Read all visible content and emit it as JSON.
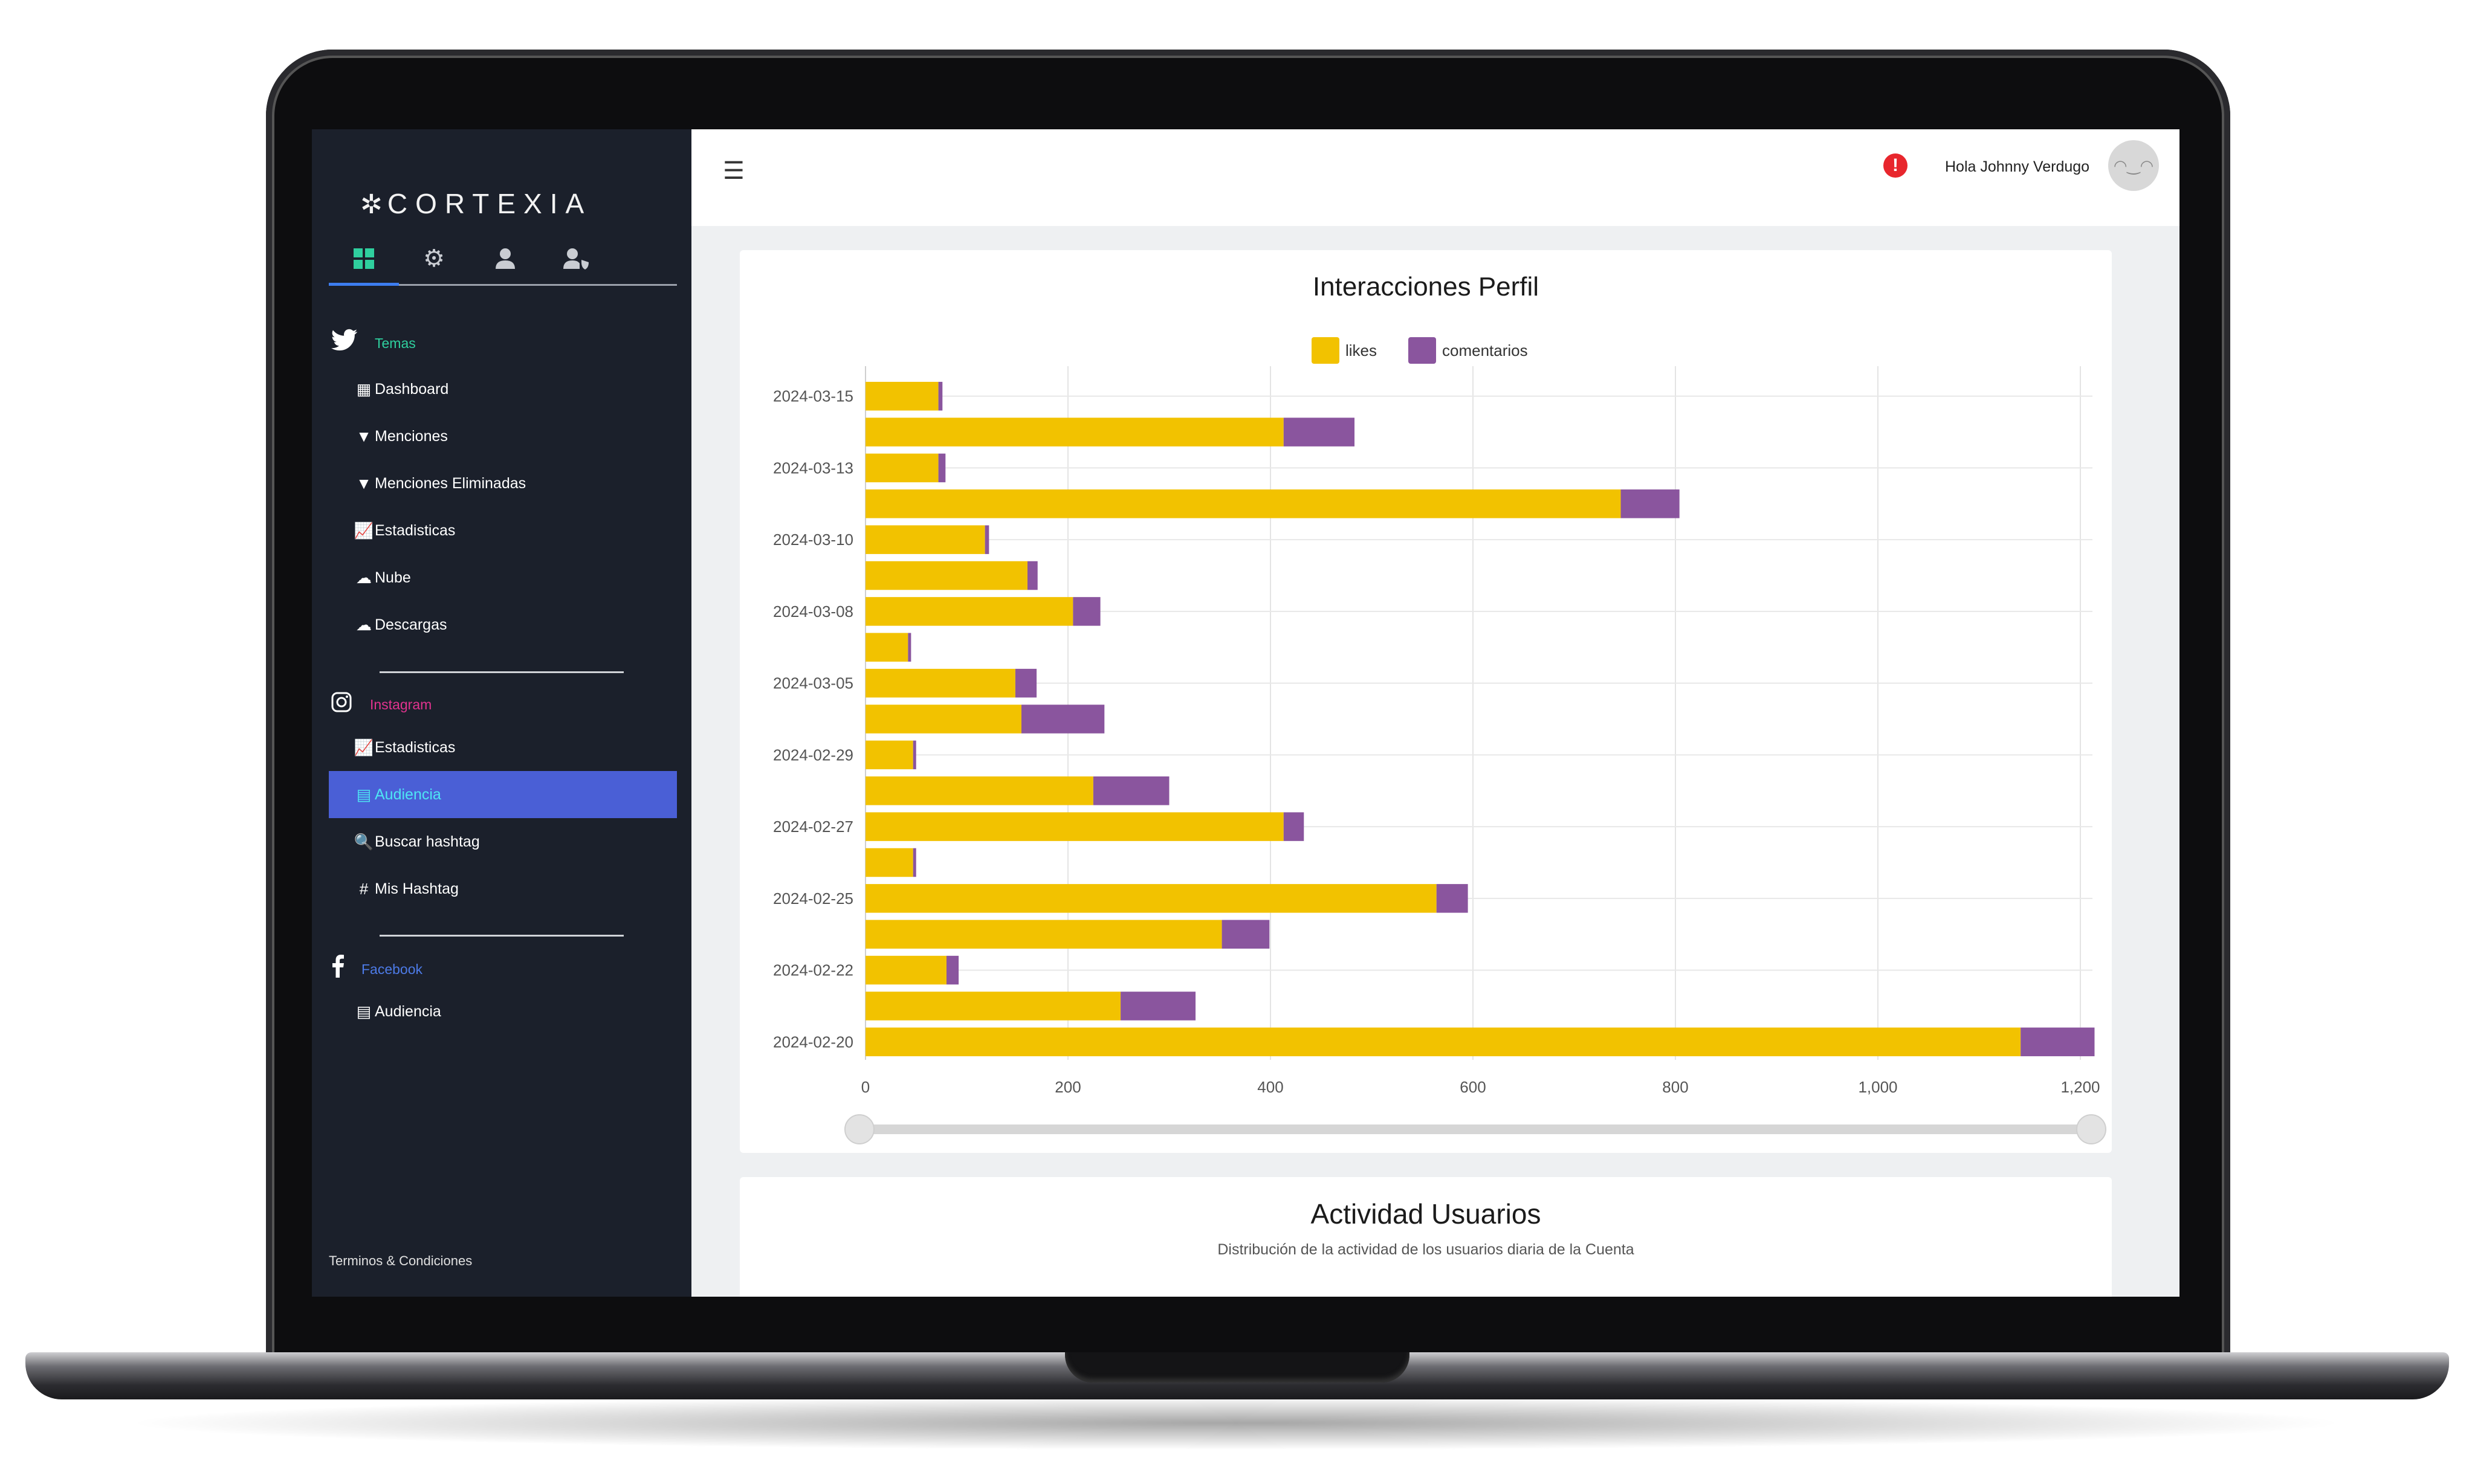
{
  "sidebar": {
    "logo": "CORTEXIA",
    "sections": [
      {
        "title": "Temas",
        "title_color": "#2fcf9e",
        "icon": "twitter-icon",
        "items": [
          {
            "label": "Dashboard",
            "icon": "grid-icon"
          },
          {
            "label": "Menciones",
            "icon": "filter-icon"
          },
          {
            "label": "Menciones Eliminadas",
            "icon": "filter-icon"
          },
          {
            "label": "Estadisticas",
            "icon": "line-chart-icon"
          },
          {
            "label": "Nube",
            "icon": "cloud-icon"
          },
          {
            "label": "Descargas",
            "icon": "cloud-icon"
          }
        ]
      },
      {
        "title": "Instagram",
        "title_color": "#e2338f",
        "icon": "instagram-icon",
        "items": [
          {
            "label": "Estadisticas",
            "icon": "line-chart-icon"
          },
          {
            "label": "Audiencia",
            "icon": "table-icon",
            "active": true
          },
          {
            "label": "Buscar hashtag",
            "icon": "search-icon"
          },
          {
            "label": "Mis Hashtag",
            "icon": "hash-icon"
          }
        ]
      },
      {
        "title": "Facebook",
        "title_color": "#4d7be8",
        "icon": "facebook-icon",
        "items": [
          {
            "label": "Audiencia",
            "icon": "table-icon"
          }
        ]
      }
    ],
    "footer": "Terminos & Condiciones"
  },
  "header": {
    "greeting": "Hola Johnny Verdugo"
  },
  "colors": {
    "likes": "#f2c200",
    "comentarios": "#8a559e",
    "active_nav": "#4a5fd6"
  },
  "chart_data": {
    "type": "bar",
    "orientation": "horizontal",
    "stacked": true,
    "title": "Interacciones Perfil",
    "categories": [
      "2024-03-15",
      "",
      "2024-03-13",
      "",
      "2024-03-10",
      "",
      "2024-03-08",
      "",
      "2024-03-05",
      "",
      "2024-02-29",
      "",
      "2024-02-27",
      "",
      "2024-02-25",
      "",
      "2024-02-22",
      "",
      "2024-02-20"
    ],
    "series": [
      {
        "name": "likes",
        "values": [
          72,
          413,
          72,
          746,
          118,
          160,
          205,
          42,
          148,
          154,
          47,
          225,
          413,
          47,
          564,
          352,
          80,
          252,
          1141
        ]
      },
      {
        "name": "comentarios",
        "values": [
          4,
          70,
          7,
          58,
          4,
          10,
          27,
          3,
          21,
          82,
          3,
          75,
          20,
          3,
          31,
          47,
          12,
          74,
          73
        ]
      }
    ],
    "xlim": [
      0,
      1200
    ],
    "xticks": [
      "0",
      "200",
      "400",
      "600",
      "800",
      "1,000",
      "1,200"
    ],
    "grid": true,
    "legend": "top-center"
  },
  "section2": {
    "title": "Actividad Usuarios",
    "subtitle": "Distribución de la actividad de los usuarios diaria de la Cuenta"
  }
}
